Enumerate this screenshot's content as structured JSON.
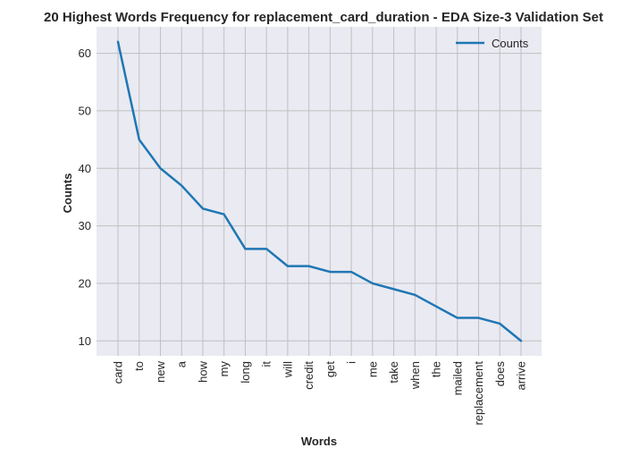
{
  "chart_data": {
    "type": "line",
    "title": "20 Highest Words Frequency for replacement_card_duration - EDA Size-3 Validation Set",
    "xlabel": "Words",
    "ylabel": "Counts",
    "categories": [
      "card",
      "to",
      "new",
      "a",
      "how",
      "my",
      "long",
      "it",
      "will",
      "credit",
      "get",
      "i",
      "me",
      "take",
      "when",
      "the",
      "mailed",
      "replacement",
      "does",
      "arrive"
    ],
    "series": [
      {
        "name": "Counts",
        "values": [
          62,
          45,
          40,
          37,
          33,
          32,
          26,
          26,
          23,
          23,
          22,
          22,
          20,
          19,
          18,
          16,
          14,
          14,
          13,
          10
        ]
      }
    ],
    "ylim": [
      7.4,
      64.6
    ],
    "yticks": [
      10,
      20,
      30,
      40,
      50,
      60
    ],
    "grid": true,
    "legend_position": "top-right",
    "colors": {
      "line": "#1f77b4",
      "plot_background": "#eaeaf2",
      "grid": "#c0c0c0",
      "text": "#262626"
    }
  }
}
